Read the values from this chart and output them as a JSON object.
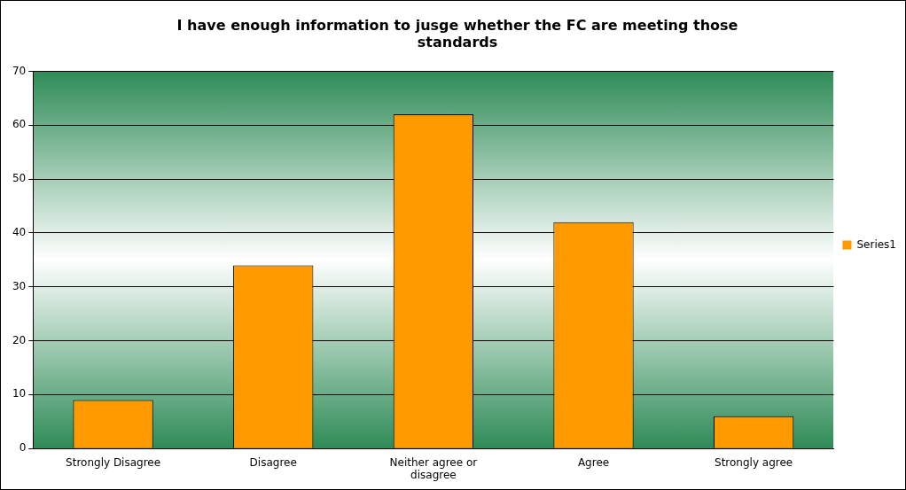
{
  "chart_data": {
    "type": "bar",
    "title": "I have enough information to jusge whether the FC are meeting those standards",
    "categories": [
      "Strongly Disagree",
      "Disagree",
      "Neither agree or disagree",
      "Agree",
      "Strongly agree"
    ],
    "series": [
      {
        "name": "Series1",
        "color": "#ff9900",
        "values": [
          9,
          34,
          62,
          42,
          6
        ]
      }
    ],
    "ylim": [
      0,
      70
    ],
    "yticks": [
      0,
      10,
      20,
      30,
      40,
      50,
      60,
      70
    ],
    "grid": "y",
    "legend": "right"
  }
}
